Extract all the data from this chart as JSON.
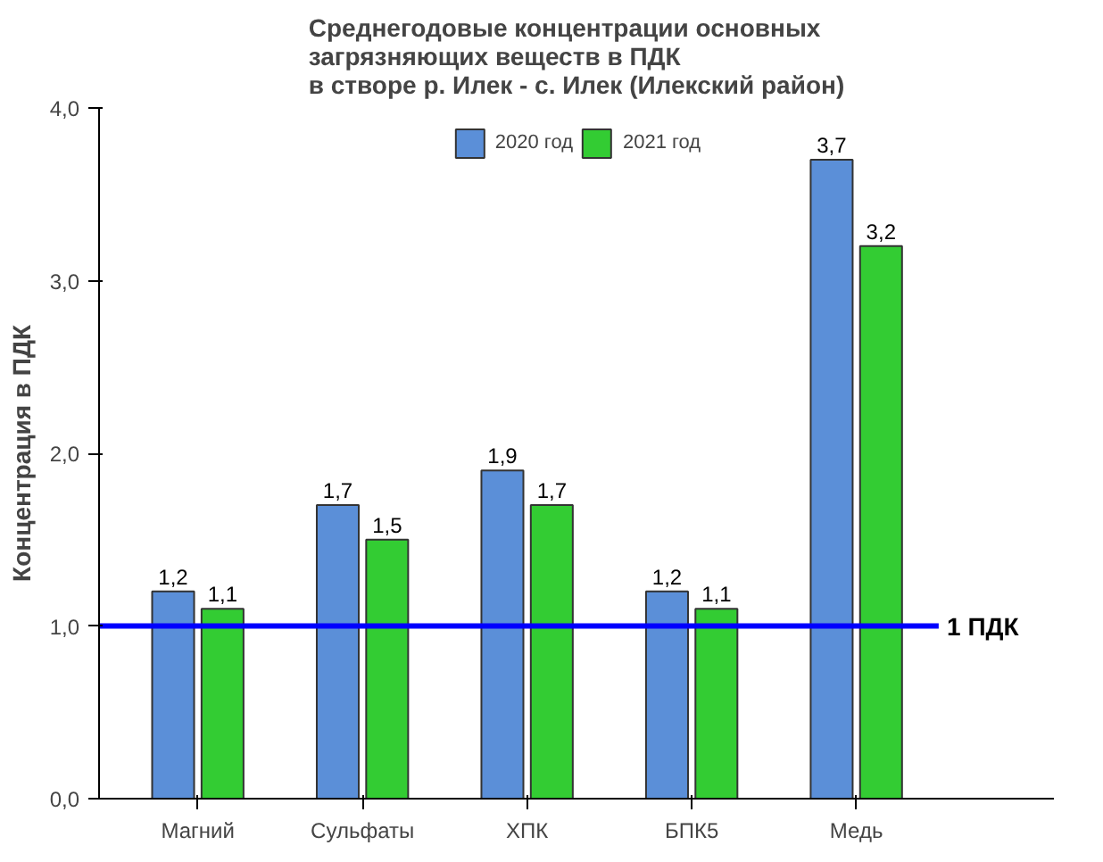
{
  "chart_data": {
    "type": "bar",
    "title": "Среднегодовые концентрации основных\nзагрязняющих веществ в ПДК\nв створе р. Илек - с. Илек (Илекский район)",
    "ylabel": "Концентрация в ПДК",
    "categories": [
      "Магний",
      "Сульфаты",
      "ХПК",
      "БПК5",
      "Медь"
    ],
    "series": [
      {
        "name": "2020 год",
        "color": "#5b8fd8",
        "values": [
          1.2,
          1.7,
          1.9,
          1.2,
          3.7
        ],
        "value_labels": [
          "1,2",
          "1,7",
          "1,9",
          "1,2",
          "3,7"
        ]
      },
      {
        "name": "2021 год",
        "color": "#33cc33",
        "values": [
          1.1,
          1.5,
          1.7,
          1.1,
          3.2
        ],
        "value_labels": [
          "1,1",
          "1,5",
          "1,7",
          "1,1",
          "3,2"
        ]
      }
    ],
    "ylim": [
      0,
      4
    ],
    "yticks": [
      {
        "value": 0,
        "label": "0,0"
      },
      {
        "value": 1,
        "label": "1,0"
      },
      {
        "value": 2,
        "label": "2,0"
      },
      {
        "value": 3,
        "label": "3,0"
      },
      {
        "value": 4,
        "label": "4,0"
      }
    ],
    "ref_lines": [
      {
        "axis": "y",
        "value": 1,
        "label": "1 ПДК",
        "color": "#0000ff"
      }
    ],
    "legend": "top",
    "grid": false
  }
}
